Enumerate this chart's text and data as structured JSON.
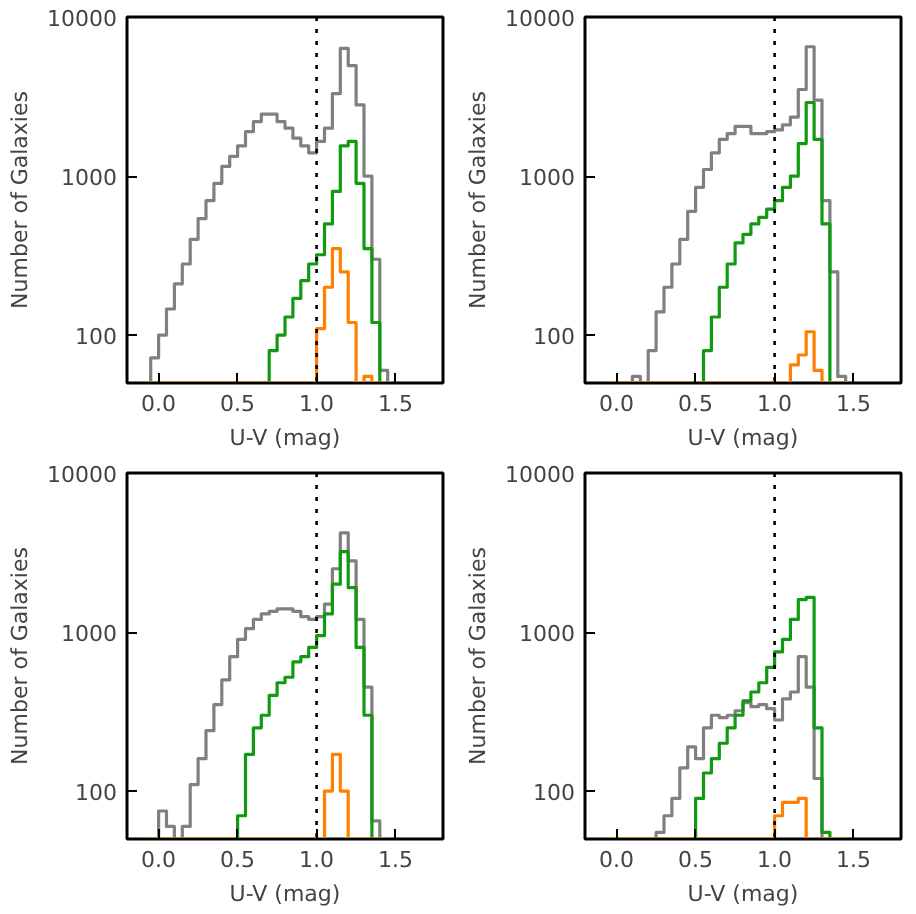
{
  "chart_data": [
    {
      "type": "histogram",
      "xlabel": "U-V (mag)",
      "ylabel": "Number of Galaxies",
      "log": "y",
      "grid": false,
      "xlim": [
        -0.2,
        1.8
      ],
      "ylim": [
        50,
        10000
      ],
      "xticks": [
        {
          "value": 0,
          "label": "0.0"
        },
        {
          "value": 0.5,
          "label": "0.5"
        },
        {
          "value": 1,
          "label": "1.0"
        },
        {
          "value": 1.5,
          "label": "1.5"
        }
      ],
      "yticks": [
        100,
        1000,
        10000
      ],
      "ref_lines": [
        {
          "axis": "x",
          "value": 1.0,
          "line_style": "dotted",
          "color": "#000000"
        }
      ],
      "bins": [
        -0.05,
        0.0,
        0.05,
        0.1,
        0.15,
        0.2,
        0.25,
        0.3,
        0.35,
        0.4,
        0.45,
        0.5,
        0.55,
        0.6,
        0.65,
        0.7,
        0.75,
        0.8,
        0.85,
        0.9,
        0.95,
        1.0,
        1.05,
        1.1,
        1.15,
        1.2,
        1.25,
        1.3,
        1.35,
        1.4,
        1.45
      ],
      "series": [
        {
          "color": "#808080",
          "values": [
            72,
            100,
            146,
            210,
            280,
            400,
            540,
            700,
            900,
            1150,
            1330,
            1550,
            1900,
            2200,
            2450,
            2450,
            2200,
            2000,
            1730,
            1550,
            1400,
            1650,
            2000,
            3300,
            6350,
            4950,
            2800,
            1000,
            300,
            60
          ]
        },
        {
          "color": "#119911",
          "values": [
            null,
            null,
            null,
            null,
            null,
            null,
            null,
            null,
            null,
            null,
            null,
            null,
            null,
            null,
            null,
            80,
            100,
            130,
            170,
            220,
            280,
            320,
            500,
            800,
            1550,
            1650,
            900,
            350,
            120,
            null
          ]
        },
        {
          "color": "#ff8000",
          "values": [
            null,
            null,
            null,
            null,
            null,
            null,
            null,
            null,
            null,
            null,
            null,
            null,
            null,
            null,
            null,
            null,
            null,
            null,
            null,
            null,
            null,
            110,
            200,
            350,
            250,
            120,
            null,
            55,
            null,
            null
          ]
        }
      ]
    },
    {
      "type": "histogram",
      "xlabel": "U-V (mag)",
      "ylabel": "Number of Galaxies",
      "log": "y",
      "grid": false,
      "xlim": [
        -0.2,
        1.8
      ],
      "ylim": [
        50,
        10000
      ],
      "xticks": [
        {
          "value": 0,
          "label": "0.0"
        },
        {
          "value": 0.5,
          "label": "0.5"
        },
        {
          "value": 1,
          "label": "1.0"
        },
        {
          "value": 1.5,
          "label": "1.5"
        }
      ],
      "yticks": [
        100,
        1000,
        10000
      ],
      "ref_lines": [
        {
          "axis": "x",
          "value": 1.0,
          "line_style": "dotted",
          "color": "#000000"
        }
      ],
      "bins": [
        -0.05,
        0.0,
        0.05,
        0.1,
        0.15,
        0.2,
        0.25,
        0.3,
        0.35,
        0.4,
        0.45,
        0.5,
        0.55,
        0.6,
        0.65,
        0.7,
        0.75,
        0.8,
        0.85,
        0.9,
        0.95,
        1.0,
        1.05,
        1.1,
        1.15,
        1.2,
        1.25,
        1.3,
        1.35,
        1.4,
        1.45
      ],
      "series": [
        {
          "color": "#808080",
          "values": [
            null,
            null,
            null,
            55,
            null,
            80,
            140,
            200,
            280,
            400,
            600,
            850,
            1100,
            1400,
            1700,
            1850,
            2050,
            2050,
            1850,
            1850,
            1900,
            1950,
            2100,
            2350,
            3500,
            6500,
            3000,
            700,
            250,
            55
          ]
        },
        {
          "color": "#119911",
          "values": [
            null,
            null,
            null,
            null,
            null,
            null,
            null,
            null,
            null,
            null,
            null,
            null,
            80,
            130,
            200,
            280,
            380,
            430,
            500,
            550,
            620,
            700,
            850,
            1000,
            1600,
            2900,
            1700,
            500,
            null,
            null
          ]
        },
        {
          "color": "#ff8000",
          "values": [
            null,
            null,
            null,
            null,
            null,
            null,
            null,
            null,
            null,
            null,
            null,
            null,
            null,
            null,
            null,
            null,
            null,
            null,
            null,
            null,
            null,
            null,
            null,
            65,
            75,
            105,
            60,
            null,
            null,
            null
          ]
        }
      ]
    },
    {
      "type": "histogram",
      "xlabel": "U-V (mag)",
      "ylabel": "Number of Galaxies",
      "log": "y",
      "grid": false,
      "xlim": [
        -0.2,
        1.8
      ],
      "ylim": [
        50,
        10000
      ],
      "xticks": [
        {
          "value": 0,
          "label": "0.0"
        },
        {
          "value": 0.5,
          "label": "0.5"
        },
        {
          "value": 1,
          "label": "1.0"
        },
        {
          "value": 1.5,
          "label": "1.5"
        }
      ],
      "yticks": [
        100,
        1000,
        10000
      ],
      "ref_lines": [
        {
          "axis": "x",
          "value": 1.0,
          "line_style": "dotted",
          "color": "#000000"
        }
      ],
      "bins": [
        -0.05,
        0.0,
        0.05,
        0.1,
        0.15,
        0.2,
        0.25,
        0.3,
        0.35,
        0.4,
        0.45,
        0.5,
        0.55,
        0.6,
        0.65,
        0.7,
        0.75,
        0.8,
        0.85,
        0.9,
        0.95,
        1.0,
        1.05,
        1.1,
        1.15,
        1.2,
        1.25,
        1.3,
        1.35,
        1.4,
        1.45
      ],
      "series": [
        {
          "color": "#808080",
          "values": [
            null,
            75,
            60,
            null,
            60,
            110,
            160,
            240,
            350,
            500,
            700,
            900,
            1050,
            1200,
            1300,
            1350,
            1400,
            1400,
            1350,
            1250,
            1200,
            1250,
            1500,
            2500,
            4200,
            2800,
            1200,
            450,
            65,
            null
          ]
        },
        {
          "color": "#119911",
          "values": [
            null,
            null,
            null,
            null,
            null,
            null,
            null,
            null,
            null,
            null,
            null,
            70,
            170,
            250,
            300,
            400,
            480,
            520,
            650,
            700,
            800,
            950,
            1300,
            2000,
            3200,
            1900,
            800,
            300,
            null,
            null
          ]
        },
        {
          "color": "#ff8000",
          "values": [
            null,
            null,
            null,
            null,
            null,
            null,
            null,
            null,
            null,
            null,
            null,
            null,
            null,
            null,
            null,
            null,
            null,
            null,
            null,
            null,
            null,
            null,
            100,
            170,
            100,
            null,
            null,
            null,
            null,
            null
          ]
        }
      ]
    },
    {
      "type": "histogram",
      "xlabel": "U-V (mag)",
      "ylabel": "Number of Galaxies",
      "log": "y",
      "grid": false,
      "xlim": [
        -0.2,
        1.8
      ],
      "ylim": [
        50,
        10000
      ],
      "xticks": [
        {
          "value": 0,
          "label": "0.0"
        },
        {
          "value": 0.5,
          "label": "0.5"
        },
        {
          "value": 1,
          "label": "1.0"
        },
        {
          "value": 1.5,
          "label": "1.5"
        }
      ],
      "yticks": [
        100,
        1000,
        10000
      ],
      "ref_lines": [
        {
          "axis": "x",
          "value": 1.0,
          "line_style": "dotted",
          "color": "#000000"
        }
      ],
      "bins": [
        -0.05,
        0.0,
        0.05,
        0.1,
        0.15,
        0.2,
        0.25,
        0.3,
        0.35,
        0.4,
        0.45,
        0.5,
        0.55,
        0.6,
        0.65,
        0.7,
        0.75,
        0.8,
        0.85,
        0.9,
        0.95,
        1.0,
        1.05,
        1.1,
        1.15,
        1.2,
        1.25,
        1.3,
        1.35,
        1.4,
        1.45
      ],
      "series": [
        {
          "color": "#808080",
          "values": [
            null,
            null,
            null,
            null,
            null,
            null,
            55,
            70,
            90,
            140,
            190,
            160,
            250,
            300,
            290,
            300,
            320,
            360,
            340,
            350,
            330,
            280,
            380,
            420,
            700,
            450,
            120,
            null,
            null,
            null
          ]
        },
        {
          "color": "#119911",
          "values": [
            null,
            null,
            null,
            null,
            null,
            null,
            null,
            null,
            null,
            null,
            null,
            90,
            130,
            160,
            200,
            250,
            300,
            370,
            420,
            480,
            600,
            750,
            900,
            1200,
            1600,
            1650,
            250,
            55,
            null,
            null
          ]
        },
        {
          "color": "#ff8000",
          "values": [
            null,
            null,
            null,
            null,
            null,
            null,
            null,
            null,
            null,
            null,
            null,
            null,
            null,
            null,
            null,
            null,
            null,
            null,
            null,
            null,
            null,
            70,
            85,
            85,
            90,
            null,
            null,
            null,
            null,
            null
          ]
        }
      ]
    }
  ]
}
